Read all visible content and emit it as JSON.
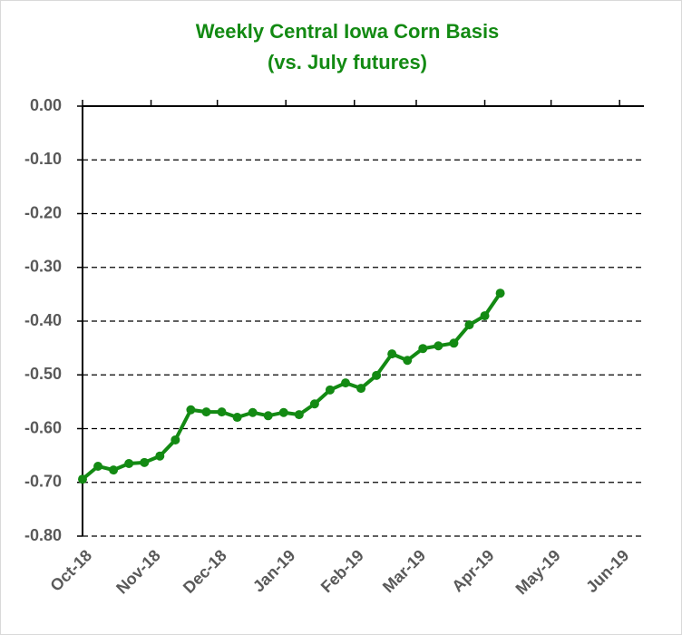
{
  "chart_data": {
    "type": "line",
    "title": "Weekly Central Iowa Corn Basis",
    "subtitle": "(vs. July futures)",
    "x": [
      0,
      7,
      14,
      21,
      28,
      35,
      42,
      49,
      56,
      63,
      70,
      77,
      84,
      91,
      98,
      105,
      112,
      119,
      126,
      133,
      140,
      147,
      154,
      161,
      168,
      175,
      182,
      189
    ],
    "series": [
      {
        "name": "Basis",
        "color": "#138a13",
        "values": [
          -0.694,
          -0.67,
          -0.677,
          -0.665,
          -0.663,
          -0.651,
          -0.621,
          -0.565,
          -0.569,
          -0.569,
          -0.579,
          -0.57,
          -0.576,
          -0.57,
          -0.574,
          -0.554,
          -0.528,
          -0.515,
          -0.525,
          -0.501,
          -0.461,
          -0.473,
          -0.451,
          -0.446,
          -0.441,
          -0.407,
          -0.39,
          -0.348
        ]
      }
    ],
    "xlim": [
      0,
      254
    ],
    "xticks": [
      {
        "value": 0,
        "label": "Oct-18"
      },
      {
        "value": 31,
        "label": "Nov-18"
      },
      {
        "value": 61,
        "label": "Dec-18"
      },
      {
        "value": 92,
        "label": "Jan-19"
      },
      {
        "value": 123,
        "label": "Feb-19"
      },
      {
        "value": 151,
        "label": "Mar-19"
      },
      {
        "value": 182,
        "label": "Apr-19"
      },
      {
        "value": 212,
        "label": "May-19"
      },
      {
        "value": 243,
        "label": "Jun-19"
      }
    ],
    "ylim": [
      -0.8,
      0
    ],
    "yticks": [
      {
        "value": 0,
        "label": "0.00"
      },
      {
        "value": -0.1,
        "label": "-0.10"
      },
      {
        "value": -0.2,
        "label": "-0.20"
      },
      {
        "value": -0.3,
        "label": "-0.30"
      },
      {
        "value": -0.4,
        "label": "-0.40"
      },
      {
        "value": -0.5,
        "label": "-0.50"
      },
      {
        "value": -0.6,
        "label": "-0.60"
      },
      {
        "value": -0.7,
        "label": "-0.70"
      },
      {
        "value": -0.8,
        "label": "-0.80"
      }
    ],
    "grid": true
  }
}
